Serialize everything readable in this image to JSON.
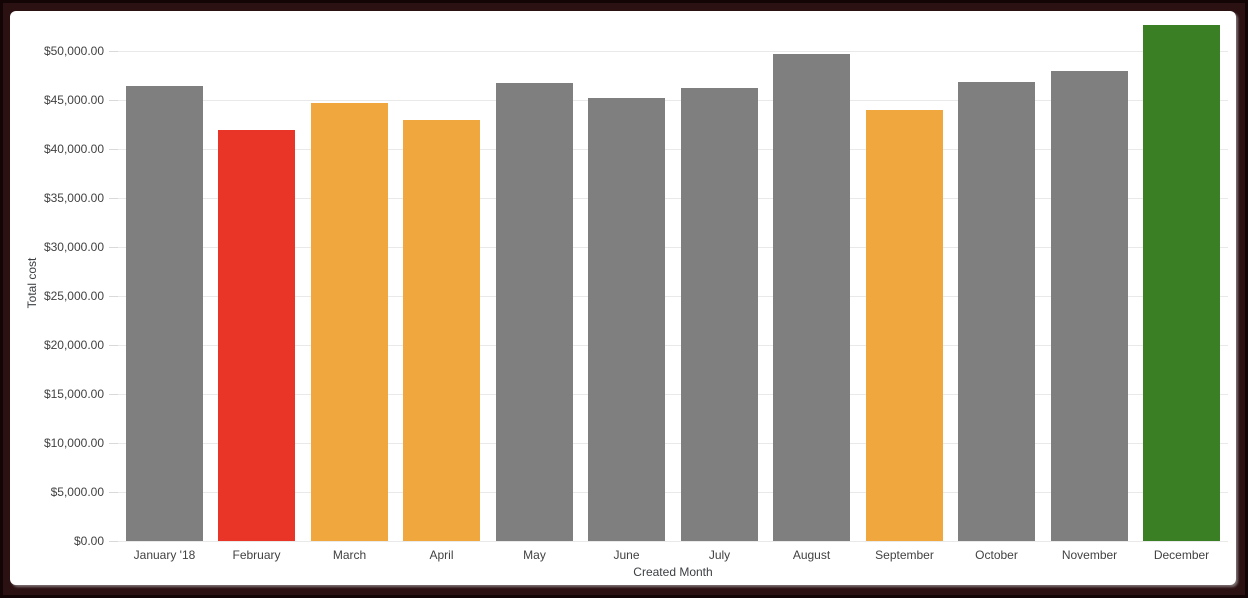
{
  "chart_data": {
    "type": "bar",
    "title": "",
    "xlabel": "Created Month",
    "ylabel": "Total cost",
    "categories": [
      "January '18",
      "February",
      "March",
      "April",
      "May",
      "June",
      "July",
      "August",
      "September",
      "October",
      "November",
      "December"
    ],
    "values": [
      46500,
      42000,
      44700,
      43000,
      46800,
      45200,
      46300,
      49700,
      44000,
      46900,
      48000,
      52700
    ],
    "bar_colors": [
      "#7f7f7f",
      "#e93528",
      "#efa73e",
      "#efa73e",
      "#7f7f7f",
      "#7f7f7f",
      "#7f7f7f",
      "#7f7f7f",
      "#efa73e",
      "#7f7f7f",
      "#7f7f7f",
      "#3a7f23"
    ],
    "ylim": [
      0,
      52700
    ],
    "ytick_step": 5000,
    "ytick_top": 50000,
    "ytick_labels": [
      "$0.00",
      "$5,000.00",
      "$10,000.00",
      "$15,000.00",
      "$20,000.00",
      "$25,000.00",
      "$30,000.00",
      "$35,000.00",
      "$40,000.00",
      "$45,000.00",
      "$50,000.00"
    ],
    "grid": true,
    "legend_position": "none",
    "colors": {
      "bar_default": "#7f7f7f",
      "bar_red": "#e93528",
      "bar_orange": "#efa73e",
      "bar_green": "#3a7f23",
      "gridline": "#e9e9e9",
      "tick_text": "#424242",
      "axis_title_text": "#3c4043",
      "card_background": "#ffffff",
      "frame_background": "#2c1113"
    }
  }
}
